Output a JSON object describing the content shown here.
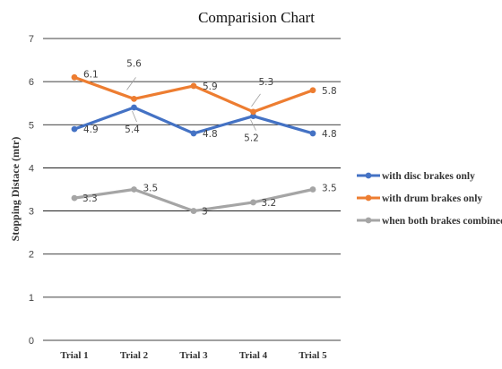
{
  "chart_data": {
    "type": "line",
    "title": "Comparision Chart",
    "ylabel": "Stopping Distace (mtr)",
    "xlabel": "",
    "categories": [
      "Trial 1",
      "Trial 2",
      "Trial 3",
      "Trial 4",
      "Trial 5"
    ],
    "ylim": [
      0,
      7
    ],
    "yticks": [
      0,
      1,
      2,
      3,
      4,
      5,
      6,
      7
    ],
    "grid": true,
    "legend_position": "right",
    "series": [
      {
        "name": "with disc brakes only",
        "color": "#4472C4",
        "values": [
          4.9,
          5.4,
          4.8,
          5.2,
          4.8
        ]
      },
      {
        "name": "with drum brakes only",
        "color": "#ED7D31",
        "values": [
          6.1,
          5.6,
          5.9,
          5.3,
          5.8
        ]
      },
      {
        "name": "when  both brakes combined",
        "color": "#A5A5A5",
        "values": [
          3.3,
          3.5,
          3,
          3.2,
          3.5
        ]
      }
    ]
  }
}
